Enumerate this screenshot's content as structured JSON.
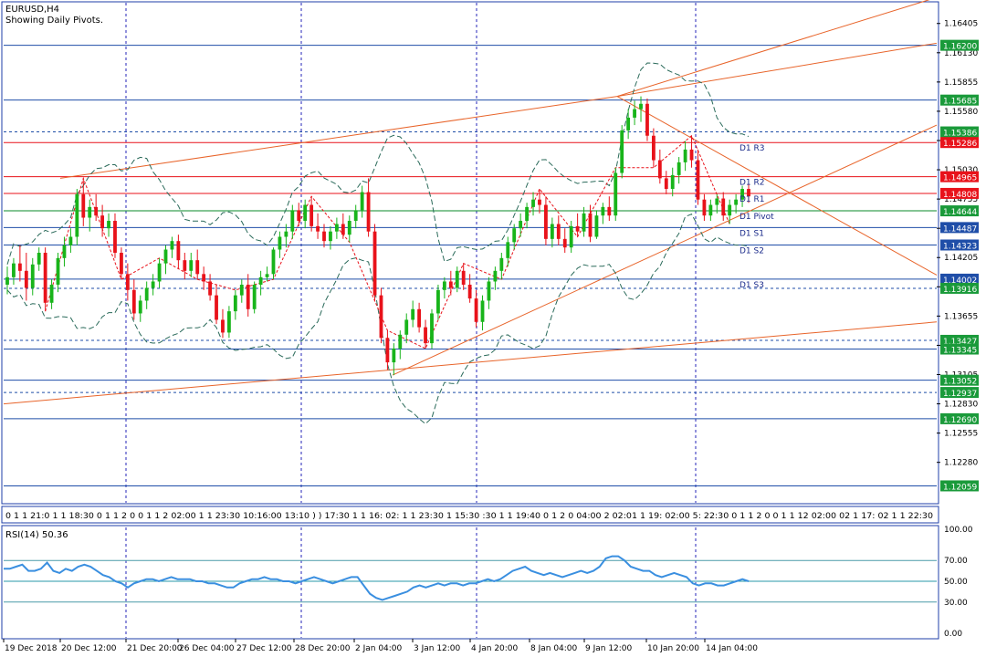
{
  "header": {
    "title": "EURUSD,H4",
    "subtitle": "Showing Daily Pivots."
  },
  "colors": {
    "bull": "#18b41a",
    "bear": "#e8121a",
    "grid": "#2424b8",
    "trend": "#e8642a",
    "hline": "#1f4ea8",
    "pivot": "#0a8a2a",
    "rsi": "#3a8fe0",
    "frame": "#1f3fa8"
  },
  "price_axis": {
    "ticks": [
      "1.16405",
      "1.16130",
      "1.15855",
      "1.15580",
      "1.15305",
      "1.15030",
      "1.14755",
      "1.14480",
      "1.14205",
      "1.13930",
      "1.13655",
      "1.13380",
      "1.13105",
      "1.12830",
      "1.12555",
      "1.12280"
    ],
    "range": [
      1.119,
      1.166
    ]
  },
  "time_axis": {
    "labels": [
      "19 Dec 2018",
      "20 Dec 12:00",
      "21 Dec 20:00",
      "26 Dec 04:00",
      "27 Dec 12:00",
      "28 Dec 20:00",
      "2 Jan 04:00",
      "3 Jan 12:00",
      "4 Jan 20:00",
      "8 Jan 04:00",
      "9 Jan 12:00",
      "10 Jan 20:00",
      "14 Jan 04:00"
    ]
  },
  "levels": [
    {
      "price": 1.162,
      "label": "1.16200",
      "style": "solid",
      "badge": "#1a9a3a"
    },
    {
      "price": 1.15685,
      "label": "1.15685",
      "style": "solid",
      "badge": "#1a9a3a"
    },
    {
      "price": 1.15386,
      "label": "1.15386",
      "style": "dashed",
      "badge": "#1a9a3a"
    },
    {
      "price": 1.15286,
      "label": "1.15286",
      "style": "solid",
      "badge": "#e8121a",
      "name": "D1 R3"
    },
    {
      "price": 1.14965,
      "label": "1.14965",
      "style": "solid",
      "badge": "#e8121a",
      "name": "D1 R2"
    },
    {
      "price": 1.14808,
      "label": "1.14808",
      "style": "solid",
      "badge": "#e8121a",
      "name": "D1 R1"
    },
    {
      "price": 1.14644,
      "label": "1.14644",
      "style": "solid",
      "badge": "#1a9a3a",
      "name": "D1 Pivot"
    },
    {
      "price": 1.14487,
      "label": "1.14487",
      "style": "solid",
      "badge": "#1f4ea8",
      "name": "D1 S1"
    },
    {
      "price": 1.14323,
      "label": "1.14323",
      "style": "solid",
      "badge": "#1f4ea8",
      "name": "D1 S2"
    },
    {
      "price": 1.14002,
      "label": "1.14002",
      "style": "solid",
      "badge": "#1f4ea8",
      "name": "D1 S3"
    },
    {
      "price": 1.13916,
      "label": "1.13916",
      "style": "dashed",
      "badge": "#1a9a3a"
    },
    {
      "price": 1.13427,
      "label": "1.13427",
      "style": "dashed",
      "badge": "#1a9a3a"
    },
    {
      "price": 1.13345,
      "label": "1.13345",
      "style": "solid",
      "badge": "#1a9a3a"
    },
    {
      "price": 1.13052,
      "label": "1.13052",
      "style": "solid",
      "badge": "#1a9a3a"
    },
    {
      "price": 1.12937,
      "label": "1.12937",
      "style": "dashed",
      "badge": "#1a9a3a"
    },
    {
      "price": 1.1269,
      "label": "1.12690",
      "style": "solid",
      "badge": "#1a9a3a"
    },
    {
      "price": 1.12059,
      "label": "1.12059",
      "style": "solid",
      "badge": "#1a9a3a"
    }
  ],
  "session_strip": {
    "text": "0 1 1 21:0 1 1 18:30 0 1 1 2 0 0 1 1 2 02:00 1 1 23:30 10:16:00 13:10 ) ) 17:30 1 1 16: 02: 1 1 23:30 1 15:30 :30 1 1 19:40 0 1 2 0 04:00 2 02:01 1 19: 02:00 5: 22:30 0 1 1 2 0 0 1 1 12 02:00 02 1 17: 02 1 1 22:30"
  },
  "rsi": {
    "label": "RSI(14) 50.36",
    "levels": [
      {
        "value": 100,
        "label": "100.00"
      },
      {
        "value": 70,
        "label": "70.00"
      },
      {
        "value": 50,
        "label": "50.00"
      },
      {
        "value": 30,
        "label": "30.00"
      },
      {
        "value": 0,
        "label": "0.00"
      }
    ],
    "values": [
      62,
      62,
      64,
      66,
      60,
      60,
      62,
      68,
      60,
      58,
      62,
      60,
      64,
      66,
      64,
      60,
      56,
      54,
      50,
      48,
      44,
      48,
      50,
      52,
      52,
      50,
      52,
      54,
      52,
      52,
      52,
      50,
      50,
      48,
      48,
      46,
      44,
      44,
      48,
      50,
      52,
      52,
      54,
      52,
      52,
      50,
      50,
      48,
      50,
      52,
      54,
      52,
      50,
      48,
      50,
      52,
      54,
      54,
      46,
      38,
      34,
      32,
      34,
      36,
      38,
      40,
      44,
      46,
      44,
      46,
      48,
      46,
      48,
      48,
      46,
      48,
      48,
      50,
      52,
      50,
      52,
      56,
      60,
      62,
      64,
      60,
      58,
      56,
      58,
      56,
      54,
      56,
      58,
      60,
      58,
      60,
      64,
      72,
      74,
      74,
      70,
      64,
      62,
      60,
      60,
      56,
      54,
      56,
      58,
      56,
      54,
      48,
      46,
      48,
      48,
      46,
      46,
      48,
      50,
      52,
      50
    ]
  },
  "chart_data": {
    "type": "candlestick",
    "symbol": "EURUSD",
    "timeframe": "H4",
    "ylim": [
      1.119,
      1.166
    ],
    "candles": [
      {
        "o": 1.1395,
        "h": 1.1412,
        "l": 1.1386,
        "c": 1.1402
      },
      {
        "o": 1.1402,
        "h": 1.142,
        "l": 1.1395,
        "c": 1.1415
      },
      {
        "o": 1.1415,
        "h": 1.1432,
        "l": 1.1398,
        "c": 1.1408
      },
      {
        "o": 1.1408,
        "h": 1.1425,
        "l": 1.138,
        "c": 1.1392
      },
      {
        "o": 1.1392,
        "h": 1.142,
        "l": 1.1385,
        "c": 1.1414
      },
      {
        "o": 1.1414,
        "h": 1.143,
        "l": 1.1408,
        "c": 1.1425
      },
      {
        "o": 1.1425,
        "h": 1.143,
        "l": 1.137,
        "c": 1.1378
      },
      {
        "o": 1.1378,
        "h": 1.14,
        "l": 1.1372,
        "c": 1.1395
      },
      {
        "o": 1.1395,
        "h": 1.1425,
        "l": 1.1388,
        "c": 1.142
      },
      {
        "o": 1.142,
        "h": 1.144,
        "l": 1.1412,
        "c": 1.1432
      },
      {
        "o": 1.1432,
        "h": 1.1448,
        "l": 1.1425,
        "c": 1.144
      },
      {
        "o": 1.144,
        "h": 1.1485,
        "l": 1.1432,
        "c": 1.148
      },
      {
        "o": 1.148,
        "h": 1.1495,
        "l": 1.145,
        "c": 1.1458
      },
      {
        "o": 1.1458,
        "h": 1.1475,
        "l": 1.1445,
        "c": 1.1468
      },
      {
        "o": 1.1468,
        "h": 1.148,
        "l": 1.1455,
        "c": 1.146
      },
      {
        "o": 1.146,
        "h": 1.147,
        "l": 1.144,
        "c": 1.1448
      },
      {
        "o": 1.1448,
        "h": 1.1462,
        "l": 1.144,
        "c": 1.1455
      },
      {
        "o": 1.1455,
        "h": 1.1462,
        "l": 1.142,
        "c": 1.1425
      },
      {
        "o": 1.1425,
        "h": 1.143,
        "l": 1.14,
        "c": 1.1405
      },
      {
        "o": 1.1405,
        "h": 1.1415,
        "l": 1.138,
        "c": 1.139
      },
      {
        "o": 1.139,
        "h": 1.14,
        "l": 1.1362,
        "c": 1.1368
      },
      {
        "o": 1.1368,
        "h": 1.1385,
        "l": 1.136,
        "c": 1.138
      },
      {
        "o": 1.138,
        "h": 1.1398,
        "l": 1.1372,
        "c": 1.1392
      },
      {
        "o": 1.1392,
        "h": 1.1405,
        "l": 1.1385,
        "c": 1.1398
      },
      {
        "o": 1.1398,
        "h": 1.142,
        "l": 1.1392,
        "c": 1.1415
      },
      {
        "o": 1.1415,
        "h": 1.1432,
        "l": 1.1405,
        "c": 1.1428
      },
      {
        "o": 1.1428,
        "h": 1.144,
        "l": 1.142,
        "c": 1.1436
      },
      {
        "o": 1.1436,
        "h": 1.1442,
        "l": 1.141,
        "c": 1.1418
      },
      {
        "o": 1.1418,
        "h": 1.1425,
        "l": 1.14,
        "c": 1.1408
      },
      {
        "o": 1.1408,
        "h": 1.1425,
        "l": 1.1402,
        "c": 1.1418
      },
      {
        "o": 1.1418,
        "h": 1.1428,
        "l": 1.14,
        "c": 1.1405
      },
      {
        "o": 1.1405,
        "h": 1.1412,
        "l": 1.139,
        "c": 1.1398
      },
      {
        "o": 1.1398,
        "h": 1.1405,
        "l": 1.138,
        "c": 1.1385
      },
      {
        "o": 1.1385,
        "h": 1.1395,
        "l": 1.1358,
        "c": 1.1362
      },
      {
        "o": 1.1362,
        "h": 1.1372,
        "l": 1.1345,
        "c": 1.135
      },
      {
        "o": 1.135,
        "h": 1.1375,
        "l": 1.1345,
        "c": 1.137
      },
      {
        "o": 1.137,
        "h": 1.139,
        "l": 1.1362,
        "c": 1.1385
      },
      {
        "o": 1.1385,
        "h": 1.14,
        "l": 1.1378,
        "c": 1.1395
      },
      {
        "o": 1.1395,
        "h": 1.1405,
        "l": 1.1365,
        "c": 1.1372
      },
      {
        "o": 1.1372,
        "h": 1.1398,
        "l": 1.1368,
        "c": 1.1395
      },
      {
        "o": 1.1395,
        "h": 1.1408,
        "l": 1.1385,
        "c": 1.1402
      },
      {
        "o": 1.1402,
        "h": 1.1412,
        "l": 1.1398,
        "c": 1.1405
      },
      {
        "o": 1.1405,
        "h": 1.143,
        "l": 1.14,
        "c": 1.1428
      },
      {
        "o": 1.1428,
        "h": 1.1445,
        "l": 1.142,
        "c": 1.144
      },
      {
        "o": 1.144,
        "h": 1.1452,
        "l": 1.143,
        "c": 1.1445
      },
      {
        "o": 1.1445,
        "h": 1.147,
        "l": 1.1438,
        "c": 1.1465
      },
      {
        "o": 1.1465,
        "h": 1.1472,
        "l": 1.145,
        "c": 1.1455
      },
      {
        "o": 1.1455,
        "h": 1.1475,
        "l": 1.1448,
        "c": 1.147
      },
      {
        "o": 1.147,
        "h": 1.1478,
        "l": 1.1445,
        "c": 1.145
      },
      {
        "o": 1.145,
        "h": 1.1462,
        "l": 1.1438,
        "c": 1.1445
      },
      {
        "o": 1.1445,
        "h": 1.1452,
        "l": 1.143,
        "c": 1.1436
      },
      {
        "o": 1.1436,
        "h": 1.145,
        "l": 1.1428,
        "c": 1.1445
      },
      {
        "o": 1.1445,
        "h": 1.1458,
        "l": 1.1438,
        "c": 1.1452
      },
      {
        "o": 1.1452,
        "h": 1.1462,
        "l": 1.1438,
        "c": 1.1442
      },
      {
        "o": 1.1442,
        "h": 1.146,
        "l": 1.1435,
        "c": 1.1455
      },
      {
        "o": 1.1455,
        "h": 1.147,
        "l": 1.1448,
        "c": 1.1465
      },
      {
        "o": 1.1465,
        "h": 1.1488,
        "l": 1.1458,
        "c": 1.1482
      },
      {
        "o": 1.1482,
        "h": 1.1495,
        "l": 1.144,
        "c": 1.1445
      },
      {
        "o": 1.1445,
        "h": 1.1452,
        "l": 1.138,
        "c": 1.1385
      },
      {
        "o": 1.1385,
        "h": 1.1392,
        "l": 1.134,
        "c": 1.1345
      },
      {
        "o": 1.1345,
        "h": 1.1352,
        "l": 1.1315,
        "c": 1.1322
      },
      {
        "o": 1.1322,
        "h": 1.134,
        "l": 1.131,
        "c": 1.1335
      },
      {
        "o": 1.1335,
        "h": 1.1352,
        "l": 1.1325,
        "c": 1.1348
      },
      {
        "o": 1.1348,
        "h": 1.1368,
        "l": 1.134,
        "c": 1.1362
      },
      {
        "o": 1.1362,
        "h": 1.138,
        "l": 1.1355,
        "c": 1.1372
      },
      {
        "o": 1.1372,
        "h": 1.1378,
        "l": 1.135,
        "c": 1.1355
      },
      {
        "o": 1.1355,
        "h": 1.1362,
        "l": 1.1335,
        "c": 1.134
      },
      {
        "o": 1.134,
        "h": 1.1372,
        "l": 1.1335,
        "c": 1.1368
      },
      {
        "o": 1.1368,
        "h": 1.1395,
        "l": 1.1362,
        "c": 1.139
      },
      {
        "o": 1.139,
        "h": 1.1402,
        "l": 1.1382,
        "c": 1.1398
      },
      {
        "o": 1.1398,
        "h": 1.1408,
        "l": 1.1385,
        "c": 1.1392
      },
      {
        "o": 1.1392,
        "h": 1.1412,
        "l": 1.1388,
        "c": 1.1408
      },
      {
        "o": 1.1408,
        "h": 1.1415,
        "l": 1.139,
        "c": 1.1395
      },
      {
        "o": 1.1395,
        "h": 1.1405,
        "l": 1.1378,
        "c": 1.1382
      },
      {
        "o": 1.1382,
        "h": 1.139,
        "l": 1.1355,
        "c": 1.136
      },
      {
        "o": 1.136,
        "h": 1.1385,
        "l": 1.1352,
        "c": 1.138
      },
      {
        "o": 1.138,
        "h": 1.1402,
        "l": 1.1372,
        "c": 1.1398
      },
      {
        "o": 1.1398,
        "h": 1.1412,
        "l": 1.139,
        "c": 1.1408
      },
      {
        "o": 1.1408,
        "h": 1.1425,
        "l": 1.14,
        "c": 1.142
      },
      {
        "o": 1.142,
        "h": 1.144,
        "l": 1.1412,
        "c": 1.1435
      },
      {
        "o": 1.1435,
        "h": 1.1452,
        "l": 1.1428,
        "c": 1.1448
      },
      {
        "o": 1.1448,
        "h": 1.1462,
        "l": 1.144,
        "c": 1.1455
      },
      {
        "o": 1.1455,
        "h": 1.1472,
        "l": 1.1448,
        "c": 1.1468
      },
      {
        "o": 1.1468,
        "h": 1.1482,
        "l": 1.146,
        "c": 1.1475
      },
      {
        "o": 1.1475,
        "h": 1.1485,
        "l": 1.1462,
        "c": 1.147
      },
      {
        "o": 1.147,
        "h": 1.1478,
        "l": 1.1432,
        "c": 1.1438
      },
      {
        "o": 1.1438,
        "h": 1.1458,
        "l": 1.143,
        "c": 1.1452
      },
      {
        "o": 1.1452,
        "h": 1.146,
        "l": 1.1432,
        "c": 1.1438
      },
      {
        "o": 1.1438,
        "h": 1.1448,
        "l": 1.1425,
        "c": 1.143
      },
      {
        "o": 1.143,
        "h": 1.1455,
        "l": 1.1425,
        "c": 1.145
      },
      {
        "o": 1.145,
        "h": 1.1462,
        "l": 1.144,
        "c": 1.1445
      },
      {
        "o": 1.1445,
        "h": 1.1468,
        "l": 1.144,
        "c": 1.1462
      },
      {
        "o": 1.1462,
        "h": 1.147,
        "l": 1.1435,
        "c": 1.144
      },
      {
        "o": 1.144,
        "h": 1.1465,
        "l": 1.1438,
        "c": 1.146
      },
      {
        "o": 1.146,
        "h": 1.1472,
        "l": 1.1452,
        "c": 1.1468
      },
      {
        "o": 1.1468,
        "h": 1.1478,
        "l": 1.1455,
        "c": 1.146
      },
      {
        "o": 1.146,
        "h": 1.1505,
        "l": 1.1455,
        "c": 1.15
      },
      {
        "o": 1.15,
        "h": 1.1545,
        "l": 1.1495,
        "c": 1.154
      },
      {
        "o": 1.154,
        "h": 1.156,
        "l": 1.1532,
        "c": 1.1552
      },
      {
        "o": 1.1552,
        "h": 1.1568,
        "l": 1.1545,
        "c": 1.156
      },
      {
        "o": 1.156,
        "h": 1.1572,
        "l": 1.1548,
        "c": 1.1565
      },
      {
        "o": 1.1565,
        "h": 1.157,
        "l": 1.153,
        "c": 1.1535
      },
      {
        "o": 1.1535,
        "h": 1.1542,
        "l": 1.1505,
        "c": 1.1512
      },
      {
        "o": 1.1512,
        "h": 1.1522,
        "l": 1.149,
        "c": 1.1495
      },
      {
        "o": 1.1495,
        "h": 1.1502,
        "l": 1.148,
        "c": 1.1485
      },
      {
        "o": 1.1485,
        "h": 1.1505,
        "l": 1.1478,
        "c": 1.1498
      },
      {
        "o": 1.1498,
        "h": 1.1515,
        "l": 1.149,
        "c": 1.151
      },
      {
        "o": 1.151,
        "h": 1.153,
        "l": 1.1502,
        "c": 1.1522
      },
      {
        "o": 1.1522,
        "h": 1.1535,
        "l": 1.1505,
        "c": 1.1512
      },
      {
        "o": 1.1512,
        "h": 1.1522,
        "l": 1.147,
        "c": 1.1475
      },
      {
        "o": 1.1475,
        "h": 1.148,
        "l": 1.1455,
        "c": 1.146
      },
      {
        "o": 1.146,
        "h": 1.1475,
        "l": 1.1455,
        "c": 1.147
      },
      {
        "o": 1.147,
        "h": 1.148,
        "l": 1.1462,
        "c": 1.1476
      },
      {
        "o": 1.1476,
        "h": 1.1482,
        "l": 1.1455,
        "c": 1.146
      },
      {
        "o": 1.146,
        "h": 1.1475,
        "l": 1.1452,
        "c": 1.147
      },
      {
        "o": 1.147,
        "h": 1.148,
        "l": 1.1462,
        "c": 1.1475
      },
      {
        "o": 1.1475,
        "h": 1.1488,
        "l": 1.1468,
        "c": 1.1485
      },
      {
        "o": 1.1485,
        "h": 1.149,
        "l": 1.1472,
        "c": 1.1478
      }
    ]
  }
}
